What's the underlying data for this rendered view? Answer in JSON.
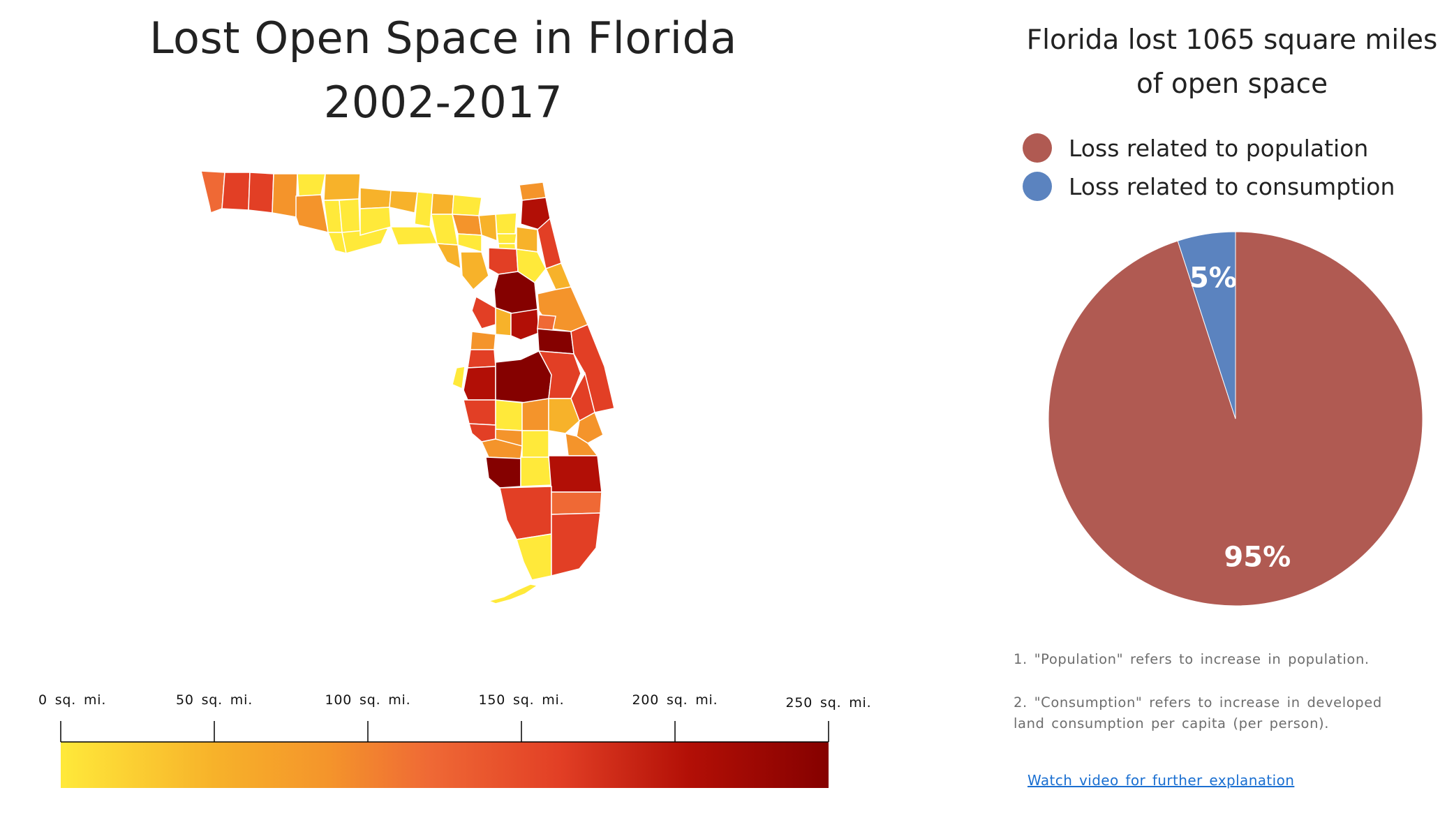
{
  "map": {
    "title_line1": "Lost Open Space in Florida",
    "title_line2": "2002-2017"
  },
  "scale": {
    "ticks": [
      "0 sq. mi.",
      "50 sq. mi.",
      "100 sq. mi.",
      "150 sq. mi.",
      "200 sq. mi.",
      "250 sq. mi."
    ],
    "tick_values": [
      0,
      50,
      100,
      150,
      200,
      250
    ],
    "colors": [
      "#ffe93a",
      "#f7b22a",
      "#f4942b",
      "#ef6935",
      "#e23f25",
      "#b20f06",
      "#850100"
    ]
  },
  "pie": {
    "title_line1": "Florida lost 1065 square miles",
    "title_line2": "of open space",
    "legend": [
      {
        "label": "Loss related to population",
        "color": "#b05a52"
      },
      {
        "label": "Loss related to consumption",
        "color": "#5b83bf"
      }
    ]
  },
  "notes": {
    "note1": "1. \"Population\" refers to increase in population.",
    "note2": "2. \"Consumption\" refers to increase in developed land consumption per capita (per person)."
  },
  "link": {
    "label": "Watch video for further explanation"
  },
  "chart_data": [
    {
      "type": "pie",
      "title": "Florida lost 1065 square miles of open space",
      "categories": [
        "Loss related to population",
        "Loss related to consumption"
      ],
      "values": [
        95,
        5
      ],
      "value_labels": [
        "95%",
        "5%"
      ],
      "colors": [
        "#b05a52",
        "#5b83bf"
      ],
      "legend": "top"
    },
    {
      "type": "heatmap",
      "title": "Lost Open Space in Florida 2002-2017",
      "colorscale_range": [
        0,
        250
      ],
      "colorscale_ticks": [
        "0 sq. mi.",
        "50 sq. mi.",
        "100 sq. mi.",
        "150 sq. mi.",
        "200 sq. mi.",
        "250 sq. mi."
      ]
    }
  ]
}
